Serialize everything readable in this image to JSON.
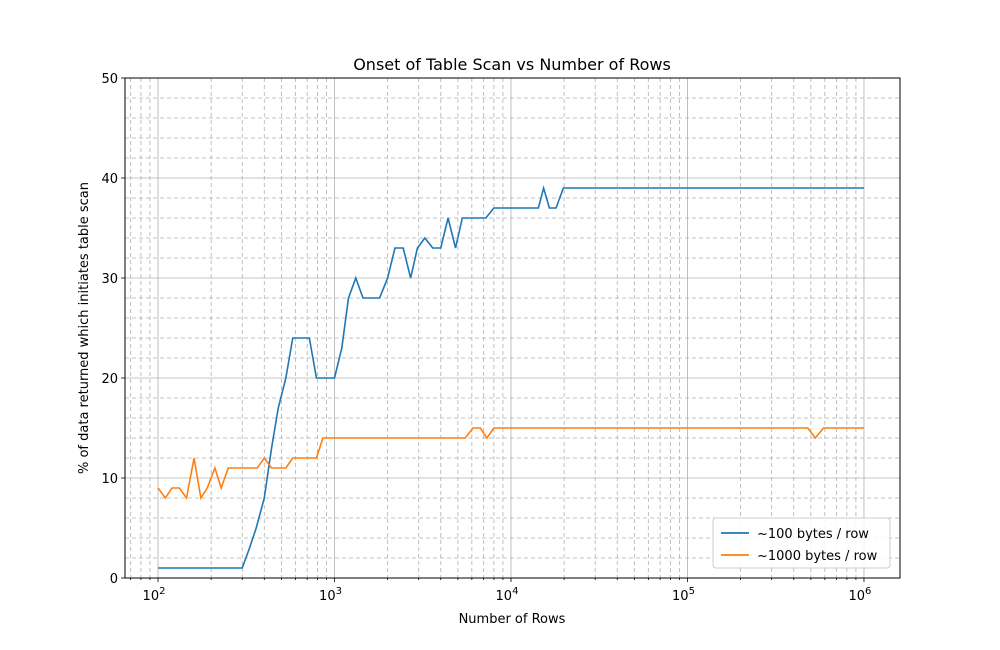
{
  "chart_data": {
    "type": "line",
    "title": "Onset of Table Scan vs Number of Rows",
    "xlabel": "Number of Rows",
    "ylabel": "% of data returned which initiates table scan",
    "xscale": "log",
    "xlim": [
      65,
      1600000
    ],
    "ylim": [
      0,
      50
    ],
    "y_ticks": [
      0,
      10,
      20,
      30,
      40,
      50
    ],
    "x_ticks": [
      {
        "value": 100,
        "base": "10",
        "exp": "2"
      },
      {
        "value": 1000,
        "base": "10",
        "exp": "3"
      },
      {
        "value": 10000,
        "base": "10",
        "exp": "4"
      },
      {
        "value": 100000,
        "base": "10",
        "exp": "5"
      },
      {
        "value": 1000000,
        "base": "10",
        "exp": "6"
      }
    ],
    "grid": true,
    "legend_position": "lower-right",
    "series": [
      {
        "name": "~100 bytes / row",
        "color": "#1f77b4",
        "points": [
          [
            100,
            1
          ],
          [
            200,
            1
          ],
          [
            300,
            1
          ],
          [
            330,
            3
          ],
          [
            360,
            5
          ],
          [
            400,
            8
          ],
          [
            440,
            13
          ],
          [
            480,
            17
          ],
          [
            530,
            20
          ],
          [
            580,
            24
          ],
          [
            650,
            24
          ],
          [
            720,
            24
          ],
          [
            790,
            20
          ],
          [
            870,
            20
          ],
          [
            1000,
            20
          ],
          [
            1100,
            23
          ],
          [
            1200,
            28
          ],
          [
            1320,
            30
          ],
          [
            1450,
            28
          ],
          [
            1600,
            28
          ],
          [
            1800,
            28
          ],
          [
            2000,
            30
          ],
          [
            2200,
            33
          ],
          [
            2450,
            33
          ],
          [
            2700,
            30
          ],
          [
            2950,
            33
          ],
          [
            3250,
            34
          ],
          [
            3600,
            33
          ],
          [
            4000,
            33
          ],
          [
            4400,
            36
          ],
          [
            4850,
            33
          ],
          [
            5300,
            36
          ],
          [
            6000,
            36
          ],
          [
            7200,
            36
          ],
          [
            8000,
            37
          ],
          [
            10000,
            37
          ],
          [
            14300,
            37
          ],
          [
            15300,
            39
          ],
          [
            16500,
            37
          ],
          [
            18000,
            37
          ],
          [
            19800,
            39
          ],
          [
            50000,
            39
          ],
          [
            100000,
            39
          ],
          [
            500000,
            39
          ],
          [
            1000000,
            39
          ]
        ]
      },
      {
        "name": "~1000 bytes / row",
        "color": "#ff7f0e",
        "points": [
          [
            100,
            9
          ],
          [
            110,
            8
          ],
          [
            120,
            9
          ],
          [
            132,
            9
          ],
          [
            145,
            8
          ],
          [
            160,
            12
          ],
          [
            175,
            8
          ],
          [
            190,
            9
          ],
          [
            210,
            11
          ],
          [
            228,
            9
          ],
          [
            250,
            11
          ],
          [
            280,
            11
          ],
          [
            330,
            11
          ],
          [
            365,
            11
          ],
          [
            400,
            12
          ],
          [
            440,
            11
          ],
          [
            480,
            11
          ],
          [
            530,
            11
          ],
          [
            580,
            12
          ],
          [
            640,
            12
          ],
          [
            710,
            12
          ],
          [
            790,
            12
          ],
          [
            860,
            14
          ],
          [
            1000,
            14
          ],
          [
            2000,
            14
          ],
          [
            3000,
            14
          ],
          [
            4000,
            14
          ],
          [
            5500,
            14
          ],
          [
            6100,
            15
          ],
          [
            6700,
            15
          ],
          [
            7300,
            14
          ],
          [
            8000,
            15
          ],
          [
            10000,
            15
          ],
          [
            50000,
            15
          ],
          [
            100000,
            15
          ],
          [
            300000,
            15
          ],
          [
            480000,
            15
          ],
          [
            530000,
            14
          ],
          [
            590000,
            15
          ],
          [
            700000,
            15
          ],
          [
            1000000,
            15
          ]
        ]
      }
    ]
  }
}
